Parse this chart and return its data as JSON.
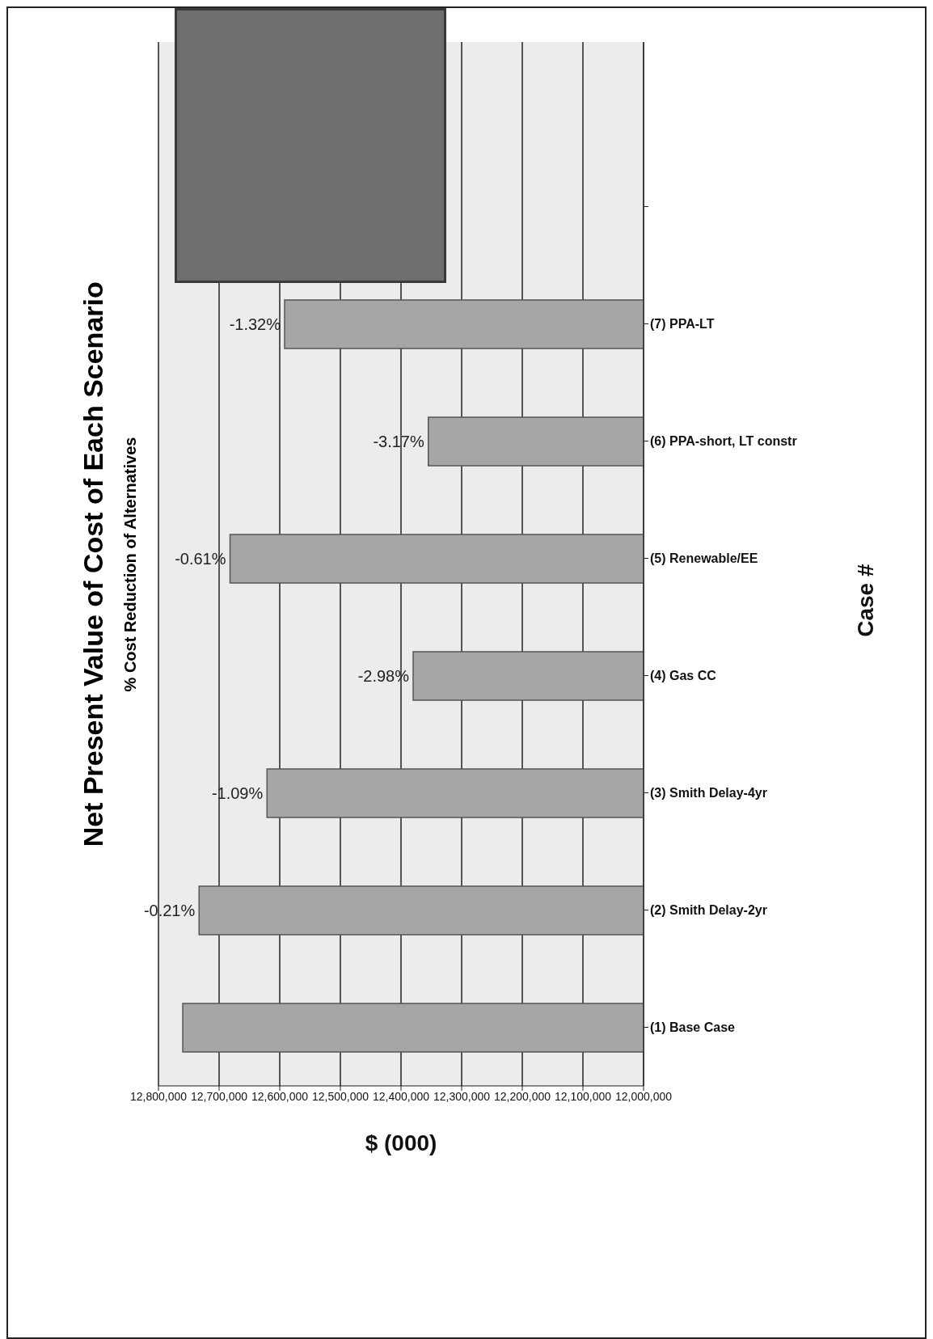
{
  "chart_data": {
    "type": "bar",
    "orientation": "horizontal",
    "title": "Net Present Value of Cost of Each Scenario",
    "subtitle": "% Cost Reduction of Alternatives",
    "xlabel": "$ (000)",
    "ylabel": "Case #",
    "categories": [
      null,
      "(7) PPA-LT",
      "(6) PPA-short, LT constr",
      "(5) Renewable/EE",
      "(4) Gas CC",
      "(3) Smith Delay-4yr",
      "(2) Smith Delay-2yr",
      "(1) Base Case"
    ],
    "values": [
      null,
      12592000,
      12355000,
      12682000,
      12380000,
      12621000,
      12733000,
      12760000
    ],
    "annotations": [
      {
        "text": "-1.32%",
        "y": "(7) PPA-LT",
        "x": 12592000
      },
      {
        "text": "-3.17%",
        "y": "(6) PPA-short, LT constr",
        "x": 12355000
      },
      {
        "text": "-0.61%",
        "y": "(5) Renewable/EE",
        "x": 12682000
      },
      {
        "text": "-2.98%",
        "y": "(4) Gas CC",
        "x": 12380000
      },
      {
        "text": "-1.09%",
        "y": "(3) Smith Delay-4yr",
        "x": 12621000
      },
      {
        "text": "-0.21%",
        "y": "(2) Smith Delay-2yr",
        "x": 12733000
      }
    ],
    "color": "#a6a6a6",
    "xlim": [
      12800000,
      12000000
    ],
    "xticks": [
      {
        "value": 12000000,
        "label": "12,000,000"
      },
      {
        "value": 12100000,
        "label": "12,100,000"
      },
      {
        "value": 12200000,
        "label": "12,200,000"
      },
      {
        "value": 12300000,
        "label": "12,300,000"
      },
      {
        "value": 12400000,
        "label": "12,400,000"
      },
      {
        "value": 12500000,
        "label": "12,500,000"
      },
      {
        "value": 12600000,
        "label": "12,600,000"
      },
      {
        "value": 12700000,
        "label": "12,700,000"
      },
      {
        "value": 12800000,
        "label": "12,800,000"
      }
    ],
    "grid": "x"
  }
}
